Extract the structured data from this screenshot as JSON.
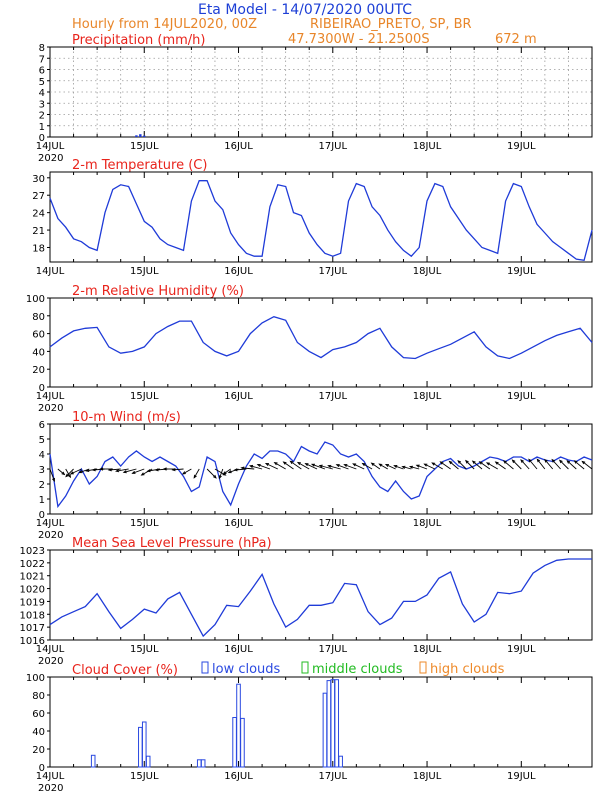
{
  "header": {
    "title": "Eta Model - 14/07/2020 00UTC",
    "subtitle_left": "Hourly from 14JUL2020, 00Z",
    "location": "RIBEIRAO_PRETO, SP, BR",
    "coords": "47.7300W - 21.2500S",
    "elevation": "672  m"
  },
  "colors": {
    "title": "#1d3fd6",
    "header": "#e8862a",
    "panel_title": "#e8241c",
    "line": "#1f3bd8",
    "axis": "#000000",
    "grid": "#9a9a9a",
    "low": "#2a49e0",
    "mid": "#22bb22",
    "high": "#ee8a2a"
  },
  "x_axis": {
    "ticks": [
      "14JUL",
      "15JUL",
      "16JUL",
      "17JUL",
      "18JUL",
      "19JUL"
    ],
    "year": "2020",
    "range_hours": [
      0,
      138
    ]
  },
  "legend": {
    "low": "low clouds",
    "middle": "middle clouds",
    "high": "high clouds"
  },
  "chart_data": [
    {
      "type": "bar",
      "id": "precip",
      "title": "Precipitation (mm/h)",
      "ylim": [
        0,
        8
      ],
      "yticks": [
        0,
        1,
        2,
        3,
        4,
        5,
        6,
        7,
        8
      ],
      "grid": true,
      "x_hours": [
        22,
        23,
        24
      ],
      "values": [
        0.15,
        0.25,
        0.12
      ]
    },
    {
      "type": "line",
      "id": "temp",
      "title": "2-m Temperature (C)",
      "ylim": [
        15.5,
        31
      ],
      "yticks": [
        18,
        21,
        24,
        27,
        30
      ],
      "grid": false,
      "x_hours": [
        0,
        2,
        4,
        6,
        8,
        10,
        12,
        14,
        16,
        18,
        20,
        22,
        24,
        26,
        28,
        30,
        32,
        34,
        36,
        38,
        40,
        42,
        44,
        46,
        48,
        50,
        52,
        54,
        56,
        58,
        60,
        62,
        64,
        66,
        68,
        70,
        72,
        74,
        76,
        78,
        80,
        82,
        84,
        86,
        88,
        90,
        92,
        94,
        96,
        98,
        100,
        102,
        104,
        106,
        108,
        110,
        112,
        114,
        116,
        118,
        120,
        122,
        124,
        126,
        128,
        130,
        132,
        134,
        136,
        138
      ],
      "values": [
        26.5,
        23,
        21.5,
        19.5,
        19,
        18,
        17.5,
        24,
        28,
        28.8,
        28.5,
        25.5,
        22.5,
        21.5,
        19.5,
        18.5,
        18,
        17.5,
        26,
        29.5,
        29.5,
        26,
        24.5,
        20.5,
        18.5,
        17,
        16.5,
        16.5,
        25,
        28.8,
        28.5,
        24,
        23.5,
        20.5,
        18.5,
        17,
        16.5,
        17,
        26,
        29,
        28.5,
        25,
        23.5,
        21,
        19,
        17.5,
        16.5,
        18,
        26,
        29,
        28.5,
        25,
        23,
        21,
        19.5,
        18,
        17.5,
        17,
        26,
        29,
        28.5,
        25,
        22,
        20.5,
        19,
        18,
        17,
        16,
        15.8,
        21
      ]
    },
    {
      "type": "line",
      "id": "rh",
      "title": "2-m Relative Humidity (%)",
      "ylim": [
        0,
        100
      ],
      "yticks": [
        0,
        20,
        40,
        60,
        80,
        100
      ],
      "grid": false,
      "x_hours": [
        0,
        3,
        6,
        9,
        12,
        15,
        18,
        21,
        24,
        27,
        30,
        33,
        36,
        39,
        42,
        45,
        48,
        51,
        54,
        57,
        60,
        63,
        66,
        69,
        72,
        75,
        78,
        81,
        84,
        87,
        90,
        93,
        96,
        99,
        102,
        105,
        108,
        111,
        114,
        117,
        120,
        123,
        126,
        129,
        132,
        135,
        138
      ],
      "values": [
        45,
        55,
        63,
        66,
        67,
        45,
        38,
        40,
        45,
        60,
        68,
        74,
        74,
        50,
        40,
        35,
        40,
        60,
        72,
        79,
        75,
        50,
        40,
        33,
        42,
        45,
        50,
        60,
        66,
        45,
        33,
        32,
        38,
        43,
        48,
        55,
        62,
        45,
        35,
        32,
        38,
        45,
        52,
        58,
        62,
        66,
        50
      ]
    },
    {
      "type": "line",
      "id": "wind",
      "title": "10-m Wind (m/s)",
      "ylim": [
        0,
        6
      ],
      "yticks": [
        0,
        1,
        2,
        3,
        4,
        5,
        6
      ],
      "grid": false,
      "x_hours": [
        0,
        2,
        4,
        6,
        8,
        10,
        12,
        14,
        16,
        18,
        20,
        22,
        24,
        26,
        28,
        30,
        32,
        34,
        36,
        38,
        40,
        42,
        44,
        46,
        48,
        50,
        52,
        54,
        56,
        58,
        60,
        62,
        64,
        66,
        68,
        70,
        72,
        74,
        76,
        78,
        80,
        82,
        84,
        86,
        88,
        90,
        92,
        94,
        96,
        98,
        100,
        102,
        104,
        106,
        108,
        110,
        112,
        114,
        116,
        118,
        120,
        122,
        124,
        126,
        128,
        130,
        132,
        134,
        136,
        138
      ],
      "values": [
        4,
        0.5,
        1.2,
        2.2,
        3,
        2,
        2.5,
        3.5,
        3.8,
        3.2,
        3.8,
        4.2,
        3.8,
        3.5,
        3.8,
        3.5,
        3.2,
        2.5,
        1.5,
        1.8,
        3.8,
        3.5,
        1.5,
        0.6,
        2,
        3.2,
        4,
        3.7,
        4.2,
        4.2,
        4,
        3.5,
        4.5,
        4.2,
        4,
        4.8,
        4.6,
        4,
        3.8,
        4,
        3.5,
        2.5,
        1.8,
        1.5,
        2.2,
        1.5,
        1,
        1.2,
        2.5,
        3,
        3.5,
        3.7,
        3.2,
        3,
        3.2,
        3.5,
        3.8,
        3.7,
        3.5,
        3.8,
        3.8,
        3.5,
        3.8,
        3.6,
        3.5,
        3.8,
        3.6,
        3.5,
        3.8,
        3.6
      ],
      "arrow_baseline": 3,
      "arrow_dirs_deg": [
        70,
        40,
        60,
        135,
        155,
        160,
        170,
        175,
        180,
        175,
        170,
        165,
        160,
        150,
        170,
        175,
        180,
        175,
        150,
        120,
        45,
        30,
        110,
        145,
        160,
        175,
        185,
        195,
        200,
        205,
        210,
        215,
        215,
        210,
        205,
        200,
        195,
        195,
        200,
        200,
        205,
        210,
        215,
        210,
        205,
        200,
        195,
        195,
        200,
        205,
        210,
        215,
        220,
        225,
        225,
        220,
        215,
        210,
        215,
        220,
        225,
        228,
        230,
        232,
        230,
        228,
        225,
        222,
        220,
        218
      ]
    },
    {
      "type": "line",
      "id": "slp",
      "title": "Mean Sea Level Pressure (hPa)",
      "ylim": [
        1016,
        1023
      ],
      "yticks": [
        1016,
        1017,
        1018,
        1019,
        1020,
        1021,
        1022,
        1023
      ],
      "grid": false,
      "x_hours": [
        0,
        3,
        6,
        9,
        12,
        15,
        18,
        21,
        24,
        27,
        30,
        33,
        36,
        39,
        42,
        45,
        48,
        51,
        54,
        57,
        60,
        63,
        66,
        69,
        72,
        75,
        78,
        81,
        84,
        87,
        90,
        93,
        96,
        99,
        102,
        105,
        108,
        111,
        114,
        117,
        120,
        123,
        126,
        129,
        132,
        135,
        138
      ],
      "values": [
        1017.2,
        1017.8,
        1018.2,
        1018.6,
        1019.6,
        1018.2,
        1016.9,
        1017.6,
        1018.4,
        1018.1,
        1019.2,
        1019.7,
        1018.0,
        1016.3,
        1017.2,
        1018.7,
        1018.6,
        1019.8,
        1021.1,
        1018.8,
        1017.0,
        1017.6,
        1018.7,
        1018.7,
        1018.9,
        1020.4,
        1020.3,
        1018.2,
        1017.2,
        1017.7,
        1019.0,
        1019.0,
        1019.5,
        1020.8,
        1021.3,
        1018.8,
        1017.4,
        1018.0,
        1019.7,
        1019.6,
        1019.8,
        1021.2,
        1021.8,
        1022.2,
        1022.3,
        1022.3,
        1022.3
      ]
    },
    {
      "type": "bar",
      "id": "cloud",
      "title": "Cloud Cover (%)",
      "ylim": [
        0,
        100
      ],
      "yticks": [
        0,
        20,
        40,
        60,
        80,
        100
      ],
      "grid": false,
      "series": [
        {
          "name": "low clouds",
          "x_hours": [
            11,
            23,
            24,
            25,
            38,
            39,
            47,
            48,
            49,
            70,
            71,
            72,
            73,
            74
          ],
          "values": [
            13,
            44,
            50,
            12,
            8,
            8,
            55,
            92,
            54,
            82,
            96,
            97,
            97,
            12
          ]
        }
      ]
    }
  ]
}
